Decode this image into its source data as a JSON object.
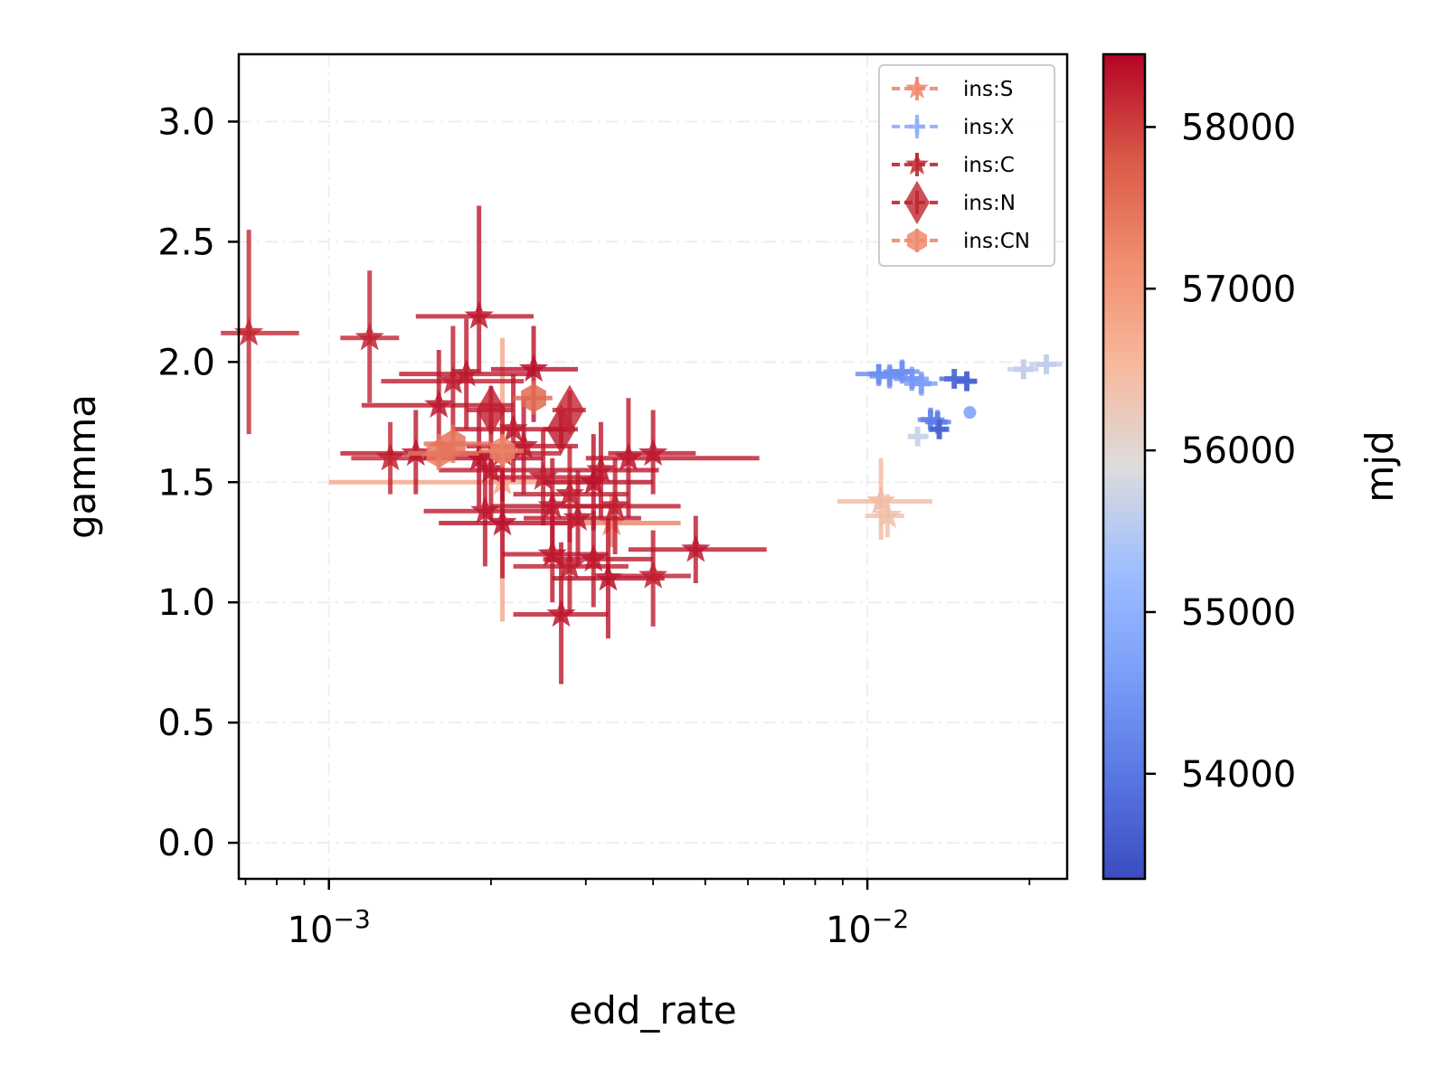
{
  "chart_data": {
    "type": "scatter",
    "title": "",
    "xlabel": "edd_rate",
    "ylabel": "gamma",
    "xscale": "log",
    "xlim": [
      0.00068,
      0.0235
    ],
    "ylim": [
      -0.15,
      3.28
    ],
    "grid": true,
    "x_ticks": [
      {
        "value": 0.001,
        "base": "10",
        "exp": "−3"
      },
      {
        "value": 0.01,
        "base": "10",
        "exp": "−2"
      }
    ],
    "y_ticks": [
      {
        "value": 0.0,
        "label": "0.0"
      },
      {
        "value": 0.5,
        "label": "0.5"
      },
      {
        "value": 1.0,
        "label": "1.0"
      },
      {
        "value": 1.5,
        "label": "1.5"
      },
      {
        "value": 2.0,
        "label": "2.0"
      },
      {
        "value": 2.5,
        "label": "2.5"
      },
      {
        "value": 3.0,
        "label": "3.0"
      }
    ],
    "legend_position": "top-right",
    "colorbar": {
      "label": "mjd",
      "min": 53350,
      "max": 58450,
      "colormap": "coolwarm",
      "ticks": [
        {
          "value": 54000,
          "label": "54000"
        },
        {
          "value": 55000,
          "label": "55000"
        },
        {
          "value": 56000,
          "label": "56000"
        },
        {
          "value": 57000,
          "label": "57000"
        },
        {
          "value": 58000,
          "label": "58000"
        }
      ]
    },
    "series": [
      {
        "name": "ins:S",
        "marker": "star",
        "legend_color": "#f08a6e",
        "points": [
          {
            "x": 0.0021,
            "y": 1.5,
            "xlo": 0.001,
            "xhi": 0.0032,
            "ylo": 0.92,
            "yhi": 2.1,
            "mjd": 56800
          },
          {
            "x": 0.00335,
            "y": 1.33,
            "xlo": 0.0026,
            "xhi": 0.0045,
            "ylo": 1.23,
            "yhi": 1.45,
            "mjd": 57300
          },
          {
            "x": 0.0106,
            "y": 1.42,
            "xlo": 0.0088,
            "xhi": 0.0132,
            "ylo": 1.26,
            "yhi": 1.6,
            "mjd": 56500
          },
          {
            "x": 0.0109,
            "y": 1.36,
            "xlo": 0.0099,
            "xhi": 0.0117,
            "ylo": 1.27,
            "yhi": 1.45,
            "mjd": 56400
          }
        ]
      },
      {
        "name": "ins:X",
        "marker": "plus",
        "legend_color": "#8db0fe",
        "points": [
          {
            "x": 0.0105,
            "y": 1.95,
            "xlo": 0.0095,
            "xhi": 0.0115,
            "ylo": 1.9,
            "yhi": 1.99,
            "mjd": 54300
          },
          {
            "x": 0.011,
            "y": 1.94,
            "xlo": 0.0101,
            "xhi": 0.0119,
            "ylo": 1.89,
            "yhi": 1.99,
            "mjd": 54400
          },
          {
            "x": 0.0116,
            "y": 1.96,
            "xlo": 0.0107,
            "xhi": 0.0125,
            "ylo": 1.91,
            "yhi": 2.01,
            "mjd": 54350
          },
          {
            "x": 0.0121,
            "y": 1.93,
            "xlo": 0.0112,
            "xhi": 0.013,
            "ylo": 1.88,
            "yhi": 1.98,
            "mjd": 54500
          },
          {
            "x": 0.0126,
            "y": 1.91,
            "xlo": 0.0117,
            "xhi": 0.0135,
            "ylo": 1.86,
            "yhi": 1.96,
            "mjd": 54600
          },
          {
            "x": 0.0131,
            "y": 1.76,
            "xlo": 0.0124,
            "xhi": 0.0139,
            "ylo": 1.71,
            "yhi": 1.81,
            "mjd": 54200
          },
          {
            "x": 0.0135,
            "y": 1.75,
            "xlo": 0.0128,
            "xhi": 0.0143,
            "ylo": 1.7,
            "yhi": 1.8,
            "mjd": 54100
          },
          {
            "x": 0.0124,
            "y": 1.69,
            "xlo": 0.0119,
            "xhi": 0.013,
            "ylo": 1.65,
            "yhi": 1.73,
            "mjd": 55700
          },
          {
            "x": 0.0136,
            "y": 1.72,
            "xlo": 0.0131,
            "xhi": 0.0141,
            "ylo": 1.68,
            "yhi": 1.76,
            "mjd": 53700
          },
          {
            "x": 0.0145,
            "y": 1.93,
            "xlo": 0.0136,
            "xhi": 0.0155,
            "ylo": 1.89,
            "yhi": 1.97,
            "mjd": 53800
          },
          {
            "x": 0.0153,
            "y": 1.92,
            "xlo": 0.0146,
            "xhi": 0.016,
            "ylo": 1.88,
            "yhi": 1.96,
            "mjd": 53700
          },
          {
            "x": 0.0155,
            "y": 1.79,
            "xlo": 0.0155,
            "xhi": 0.0155,
            "ylo": 1.79,
            "yhi": 1.79,
            "mjd": 54600
          },
          {
            "x": 0.0195,
            "y": 1.97,
            "xlo": 0.0182,
            "xhi": 0.0208,
            "ylo": 1.93,
            "yhi": 2.01,
            "mjd": 55600
          },
          {
            "x": 0.0215,
            "y": 1.99,
            "xlo": 0.02,
            "xhi": 0.023,
            "ylo": 1.95,
            "yhi": 2.03,
            "mjd": 55600
          }
        ]
      },
      {
        "name": "ins:C",
        "marker": "star",
        "legend_color": "#c0282f",
        "points": [
          {
            "x": 0.00071,
            "y": 2.12,
            "xlo": 0.00063,
            "xhi": 0.00088,
            "ylo": 1.7,
            "yhi": 2.55,
            "mjd": 58200
          },
          {
            "x": 0.00119,
            "y": 2.1,
            "xlo": 0.00105,
            "xhi": 0.00135,
            "ylo": 1.83,
            "yhi": 2.38,
            "mjd": 58200
          },
          {
            "x": 0.0019,
            "y": 2.19,
            "xlo": 0.00145,
            "xhi": 0.0024,
            "ylo": 1.95,
            "yhi": 2.65,
            "mjd": 58300
          },
          {
            "x": 0.0018,
            "y": 1.95,
            "xlo": 0.00135,
            "xhi": 0.0024,
            "ylo": 1.72,
            "yhi": 2.18,
            "mjd": 58300
          },
          {
            "x": 0.0017,
            "y": 1.92,
            "xlo": 0.00125,
            "xhi": 0.0023,
            "ylo": 1.7,
            "yhi": 2.15,
            "mjd": 58250
          },
          {
            "x": 0.0016,
            "y": 1.82,
            "xlo": 0.00115,
            "xhi": 0.0022,
            "ylo": 1.6,
            "yhi": 2.05,
            "mjd": 58300
          },
          {
            "x": 0.0013,
            "y": 1.6,
            "xlo": 0.0011,
            "xhi": 0.0016,
            "ylo": 1.45,
            "yhi": 1.75,
            "mjd": 58200
          },
          {
            "x": 0.00145,
            "y": 1.62,
            "xlo": 0.00105,
            "xhi": 0.002,
            "ylo": 1.45,
            "yhi": 1.8,
            "mjd": 58300
          },
          {
            "x": 0.0019,
            "y": 1.6,
            "xlo": 0.0015,
            "xhi": 0.0025,
            "ylo": 1.4,
            "yhi": 1.8,
            "mjd": 58350
          },
          {
            "x": 0.002,
            "y": 1.55,
            "xlo": 0.0016,
            "xhi": 0.0026,
            "ylo": 1.35,
            "yhi": 1.75,
            "mjd": 58300
          },
          {
            "x": 0.0021,
            "y": 1.62,
            "xlo": 0.0016,
            "xhi": 0.0027,
            "ylo": 1.42,
            "yhi": 1.82,
            "mjd": 58250
          },
          {
            "x": 0.0022,
            "y": 1.72,
            "xlo": 0.0017,
            "xhi": 0.0028,
            "ylo": 1.5,
            "yhi": 1.95,
            "mjd": 58300
          },
          {
            "x": 0.0024,
            "y": 1.97,
            "xlo": 0.002,
            "xhi": 0.0029,
            "ylo": 1.75,
            "yhi": 2.15,
            "mjd": 58350
          },
          {
            "x": 0.0023,
            "y": 1.65,
            "xlo": 0.0018,
            "xhi": 0.0029,
            "ylo": 1.45,
            "yhi": 1.85,
            "mjd": 58300
          },
          {
            "x": 0.0025,
            "y": 1.52,
            "xlo": 0.002,
            "xhi": 0.0032,
            "ylo": 1.32,
            "yhi": 1.72,
            "mjd": 58250
          },
          {
            "x": 0.00195,
            "y": 1.38,
            "xlo": 0.0015,
            "xhi": 0.0026,
            "ylo": 1.15,
            "yhi": 1.6,
            "mjd": 58300
          },
          {
            "x": 0.0021,
            "y": 1.33,
            "xlo": 0.0016,
            "xhi": 0.0028,
            "ylo": 1.1,
            "yhi": 1.55,
            "mjd": 58350
          },
          {
            "x": 0.0026,
            "y": 1.4,
            "xlo": 0.002,
            "xhi": 0.0034,
            "ylo": 1.2,
            "yhi": 1.6,
            "mjd": 58300
          },
          {
            "x": 0.0028,
            "y": 1.45,
            "xlo": 0.0022,
            "xhi": 0.0036,
            "ylo": 1.25,
            "yhi": 1.65,
            "mjd": 58250
          },
          {
            "x": 0.0029,
            "y": 1.35,
            "xlo": 0.0023,
            "xhi": 0.0038,
            "ylo": 1.15,
            "yhi": 1.55,
            "mjd": 58300
          },
          {
            "x": 0.0031,
            "y": 1.5,
            "xlo": 0.0025,
            "xhi": 0.004,
            "ylo": 1.3,
            "yhi": 1.7,
            "mjd": 58350
          },
          {
            "x": 0.0032,
            "y": 1.55,
            "xlo": 0.0026,
            "xhi": 0.0041,
            "ylo": 1.35,
            "yhi": 1.75,
            "mjd": 58300
          },
          {
            "x": 0.0034,
            "y": 1.4,
            "xlo": 0.0027,
            "xhi": 0.0045,
            "ylo": 1.2,
            "yhi": 1.6,
            "mjd": 58250
          },
          {
            "x": 0.0036,
            "y": 1.6,
            "xlo": 0.003,
            "xhi": 0.0063,
            "ylo": 1.35,
            "yhi": 1.85,
            "mjd": 58300
          },
          {
            "x": 0.004,
            "y": 1.62,
            "xlo": 0.0033,
            "xhi": 0.0048,
            "ylo": 1.45,
            "yhi": 1.8,
            "mjd": 58300
          },
          {
            "x": 0.0026,
            "y": 1.2,
            "xlo": 0.0021,
            "xhi": 0.0033,
            "ylo": 1.0,
            "yhi": 1.4,
            "mjd": 58300
          },
          {
            "x": 0.0028,
            "y": 1.15,
            "xlo": 0.0022,
            "xhi": 0.0036,
            "ylo": 0.95,
            "yhi": 1.35,
            "mjd": 58250
          },
          {
            "x": 0.0031,
            "y": 1.18,
            "xlo": 0.0025,
            "xhi": 0.004,
            "ylo": 0.98,
            "yhi": 1.38,
            "mjd": 58300
          },
          {
            "x": 0.0033,
            "y": 1.1,
            "xlo": 0.0026,
            "xhi": 0.0042,
            "ylo": 0.85,
            "yhi": 1.35,
            "mjd": 58350
          },
          {
            "x": 0.0027,
            "y": 0.95,
            "xlo": 0.0022,
            "xhi": 0.0033,
            "ylo": 0.66,
            "yhi": 1.25,
            "mjd": 58300
          },
          {
            "x": 0.004,
            "y": 1.11,
            "xlo": 0.0033,
            "xhi": 0.0047,
            "ylo": 0.9,
            "yhi": 1.3,
            "mjd": 58250
          },
          {
            "x": 0.0048,
            "y": 1.22,
            "xlo": 0.0036,
            "xhi": 0.0065,
            "ylo": 1.08,
            "yhi": 1.36,
            "mjd": 58300
          }
        ]
      },
      {
        "name": "ins:N",
        "marker": "diamond",
        "legend_color": "#c0282f",
        "points": [
          {
            "x": 0.002,
            "y": 1.8,
            "xlo": 0.0018,
            "xhi": 0.0022,
            "ylo": 1.7,
            "yhi": 1.9,
            "mjd": 58250
          },
          {
            "x": 0.0027,
            "y": 1.72,
            "xlo": 0.0025,
            "xhi": 0.0029,
            "ylo": 1.64,
            "yhi": 1.8,
            "mjd": 58300
          },
          {
            "x": 0.0028,
            "y": 1.8,
            "xlo": 0.0026,
            "xhi": 0.003,
            "ylo": 1.72,
            "yhi": 1.88,
            "mjd": 58200
          }
        ]
      },
      {
        "name": "ins:CN",
        "marker": "hexagon",
        "legend_color": "#f08a6e",
        "points": [
          {
            "x": 0.0016,
            "y": 1.62,
            "xlo": 0.0014,
            "xhi": 0.0019,
            "ylo": 1.55,
            "yhi": 1.7,
            "mjd": 57400
          },
          {
            "x": 0.0017,
            "y": 1.66,
            "xlo": 0.0015,
            "xhi": 0.002,
            "ylo": 1.58,
            "yhi": 1.74,
            "mjd": 57500
          },
          {
            "x": 0.0024,
            "y": 1.85,
            "xlo": 0.0022,
            "xhi": 0.0026,
            "ylo": 1.78,
            "yhi": 1.92,
            "mjd": 57600
          },
          {
            "x": 0.0021,
            "y": 1.63,
            "xlo": 0.0019,
            "xhi": 0.0023,
            "ylo": 1.56,
            "yhi": 1.7,
            "mjd": 57300
          }
        ]
      }
    ]
  }
}
